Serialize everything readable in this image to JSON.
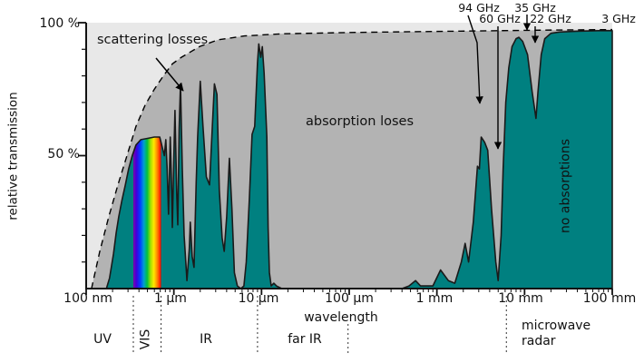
{
  "chart_data": {
    "type": "area",
    "xlabel": "wavelength",
    "ylabel": "relative transmission",
    "x_scale": "log",
    "x_unit": "µm",
    "x_range_um": [
      0.1,
      100000
    ],
    "y_range_pct": [
      0,
      100
    ],
    "grid": "off",
    "x_ticks": [
      {
        "label": "100 nm",
        "um": 0.1
      },
      {
        "label": "1 µm",
        "um": 1
      },
      {
        "label": "10 µm",
        "um": 10
      },
      {
        "label": "100 µm",
        "um": 100
      },
      {
        "label": "1 mm",
        "um": 1000
      },
      {
        "label": "10 mm",
        "um": 10000
      },
      {
        "label": "100 mm",
        "um": 100000
      }
    ],
    "y_ticks": [
      {
        "label": "100 %",
        "pct": 100
      },
      {
        "label": "50 %",
        "pct": 50
      }
    ],
    "y_minor_step_pct": 10,
    "visible_band_um": [
      0.345,
      0.715
    ],
    "region_separators_um": [
      {
        "um": 0.345,
        "tall": true
      },
      {
        "um": 0.715,
        "tall": true
      },
      {
        "um": 9,
        "tall": true
      },
      {
        "um": 97,
        "tall": false
      },
      {
        "um": 6200,
        "tall": true
      }
    ],
    "transmission_series": [
      [
        0.17,
        0
      ],
      [
        0.185,
        4
      ],
      [
        0.205,
        13
      ],
      [
        0.22,
        21
      ],
      [
        0.235,
        27
      ],
      [
        0.255,
        33
      ],
      [
        0.28,
        39
      ],
      [
        0.305,
        45
      ],
      [
        0.335,
        50
      ],
      [
        0.37,
        54
      ],
      [
        0.42,
        56
      ],
      [
        0.5,
        56.5
      ],
      [
        0.6,
        57
      ],
      [
        0.69,
        57
      ],
      [
        0.74,
        53
      ],
      [
        0.78,
        50
      ],
      [
        0.81,
        56
      ],
      [
        0.84,
        45
      ],
      [
        0.87,
        28
      ],
      [
        0.91,
        57
      ],
      [
        0.94,
        40
      ],
      [
        0.96,
        23
      ],
      [
        1.0,
        50
      ],
      [
        1.03,
        67
      ],
      [
        1.08,
        35
      ],
      [
        1.11,
        24
      ],
      [
        1.15,
        60
      ],
      [
        1.19,
        77
      ],
      [
        1.25,
        45
      ],
      [
        1.31,
        20
      ],
      [
        1.41,
        3
      ],
      [
        1.5,
        15
      ],
      [
        1.54,
        25
      ],
      [
        1.62,
        12
      ],
      [
        1.7,
        8
      ],
      [
        1.8,
        40
      ],
      [
        1.87,
        57
      ],
      [
        2.0,
        78
      ],
      [
        2.15,
        61
      ],
      [
        2.35,
        42
      ],
      [
        2.55,
        39
      ],
      [
        2.75,
        61
      ],
      [
        2.9,
        77
      ],
      [
        3.1,
        73
      ],
      [
        3.3,
        37
      ],
      [
        3.55,
        19
      ],
      [
        3.75,
        14
      ],
      [
        4.0,
        27
      ],
      [
        4.3,
        49
      ],
      [
        4.6,
        30
      ],
      [
        4.9,
        6
      ],
      [
        5.3,
        1
      ],
      [
        5.8,
        0
      ],
      [
        6.3,
        1
      ],
      [
        6.7,
        10
      ],
      [
        7.25,
        33
      ],
      [
        7.8,
        58
      ],
      [
        8.35,
        61
      ],
      [
        9.0,
        85
      ],
      [
        9.3,
        92
      ],
      [
        9.8,
        87
      ],
      [
        10.2,
        91
      ],
      [
        10.7,
        81
      ],
      [
        11.5,
        57
      ],
      [
        11.9,
        23
      ],
      [
        12.3,
        6
      ],
      [
        12.9,
        1
      ],
      [
        13.8,
        2
      ],
      [
        14.8,
        1
      ],
      [
        17,
        0
      ],
      [
        100,
        0
      ],
      [
        400,
        0
      ],
      [
        480,
        1
      ],
      [
        570,
        3
      ],
      [
        650,
        1
      ],
      [
        900,
        1
      ],
      [
        1100,
        7
      ],
      [
        1350,
        3
      ],
      [
        1600,
        2
      ],
      [
        1900,
        10
      ],
      [
        2100,
        17
      ],
      [
        2300,
        10
      ],
      [
        2600,
        25
      ],
      [
        2900,
        46
      ],
      [
        3050,
        45
      ],
      [
        3200,
        57
      ],
      [
        3500,
        55
      ],
      [
        3800,
        52
      ],
      [
        4200,
        30
      ],
      [
        4700,
        10
      ],
      [
        5000,
        3
      ],
      [
        5400,
        20
      ],
      [
        5700,
        45
      ],
      [
        6100,
        70
      ],
      [
        6600,
        83
      ],
      [
        7200,
        91
      ],
      [
        8000,
        94
      ],
      [
        8600,
        94.5
      ],
      [
        9500,
        93
      ],
      [
        10800,
        88
      ],
      [
        12200,
        74
      ],
      [
        13500,
        64
      ],
      [
        14200,
        74
      ],
      [
        15500,
        88
      ],
      [
        17000,
        94
      ],
      [
        20000,
        96
      ],
      [
        25000,
        96.5
      ],
      [
        40000,
        96.8
      ],
      [
        70000,
        97
      ],
      [
        100000,
        97
      ]
    ],
    "scattering_limit_series": [
      [
        0.115,
        0
      ],
      [
        0.143,
        14
      ],
      [
        0.181,
        27
      ],
      [
        0.23,
        39
      ],
      [
        0.292,
        50
      ],
      [
        0.37,
        61
      ],
      [
        0.47,
        69
      ],
      [
        0.6,
        75
      ],
      [
        0.76,
        80
      ],
      [
        0.96,
        84.5
      ],
      [
        1.22,
        87
      ],
      [
        1.96,
        91
      ],
      [
        3.15,
        93.5
      ],
      [
        6.4,
        95
      ],
      [
        16.8,
        95.8
      ],
      [
        100,
        96.3
      ],
      [
        1550,
        96.8
      ],
      [
        16800,
        97.2
      ],
      [
        100000,
        97.4
      ]
    ],
    "rainbow_stops": [
      {
        "pos": 0,
        "color": "#7b00a8"
      },
      {
        "pos": 0.12,
        "color": "#3c00e0"
      },
      {
        "pos": 0.25,
        "color": "#0040ff"
      },
      {
        "pos": 0.38,
        "color": "#00a0d0"
      },
      {
        "pos": 0.5,
        "color": "#00c040"
      },
      {
        "pos": 0.62,
        "color": "#a0e000"
      },
      {
        "pos": 0.74,
        "color": "#ffe800"
      },
      {
        "pos": 0.85,
        "color": "#ff9000"
      },
      {
        "pos": 0.95,
        "color": "#ff3000"
      },
      {
        "pos": 1,
        "color": "#e00000"
      }
    ]
  },
  "colors": {
    "transmission_fill": "#008080",
    "absorption_fill": "#b3b3b3",
    "scattering_fill": "#e8e8e8",
    "outline": "#1a1a1a",
    "text": "#111111"
  },
  "axis": {
    "ylabel": "relative transmission",
    "xlabel": "wavelength",
    "y_100": "100 %",
    "y_50": "50 %"
  },
  "regions": {
    "uv": "UV",
    "vis": "VIS",
    "ir": "IR",
    "far_ir": "far IR",
    "microwave_line1": "microwave",
    "microwave_line2": "radar"
  },
  "annotations": {
    "scattering": "scattering losses",
    "absorption": "absorption loses",
    "no_absorption": "no absorptions",
    "f94": "94 GHz",
    "f60": "60 GHz",
    "f35": "35 GHz",
    "f22": "22 GHz",
    "f3": "3 GHz"
  }
}
